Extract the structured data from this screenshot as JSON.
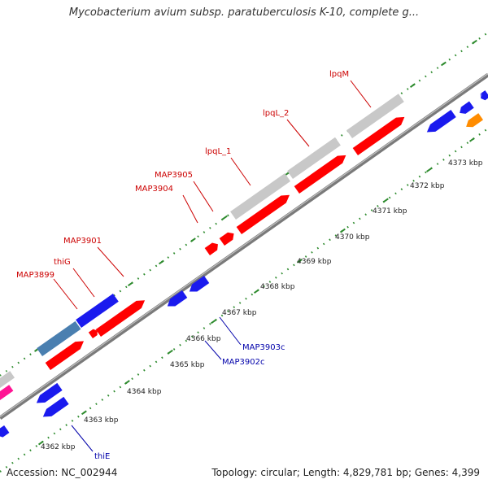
{
  "title": "Mycobacterium avium subsp. paratuberculosis K-10, complete g...",
  "footer": {
    "accession": "Accession: NC_002944",
    "topology": "Topology: circular; Length: 4,829,781 bp; Genes: 4,399"
  },
  "colors": {
    "forward_cds": "#ff0000",
    "reverse_cds": "#1a1aee",
    "gray_feature": "#c8c8c8",
    "steel_feature": "#4a7fb0",
    "orange_feature": "#ff8c00",
    "pink_feature": "#ff1493",
    "backbone": "#8c8c8c",
    "tick": "#2e8b2e",
    "forward_label": "#cc0000",
    "reverse_label": "#0000aa"
  },
  "scale_labels": [
    "4362 kbp",
    "4363 kbp",
    "4364 kbp",
    "4365 kbp",
    "4366 kbp",
    "4367 kbp",
    "4368 kbp",
    "4369 kbp",
    "4370 kbp",
    "4371 kbp",
    "4372 kbp",
    "4373 kbp"
  ],
  "gene_labels_forward": [
    "MAP3899",
    "thiG",
    "MAP3901",
    "MAP3904",
    "MAP3905",
    "lpqL_1",
    "lpqL_2",
    "lpqM"
  ],
  "gene_labels_reverse": [
    "thiE",
    "MAP3902c",
    "MAP3903c"
  ]
}
